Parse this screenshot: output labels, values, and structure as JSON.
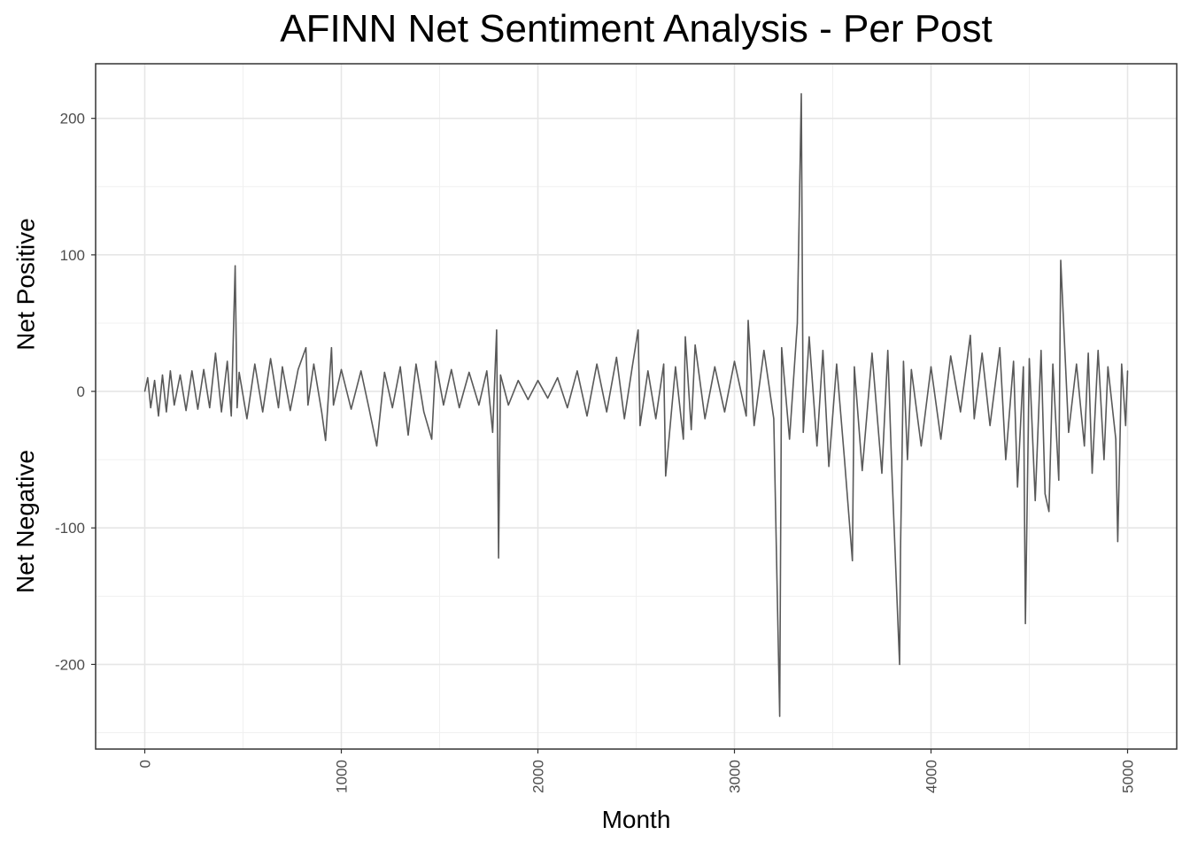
{
  "chart_data": {
    "type": "line",
    "title": "AFINN Net Sentiment Analysis - Per Post",
    "xlabel": "Month",
    "ylabel_top": "Net Positive",
    "ylabel_bottom": "Net Negative",
    "xlim": [
      -250,
      5250
    ],
    "ylim": [
      -262,
      240
    ],
    "x_ticks": [
      0,
      1000,
      2000,
      3000,
      4000,
      5000
    ],
    "x_tick_labels": [
      "0",
      "1000",
      "2000",
      "3000",
      "4000",
      "5000"
    ],
    "y_ticks": [
      -200,
      -100,
      0,
      100,
      200
    ],
    "y_tick_labels": [
      "-200",
      "-100",
      "0",
      "100",
      "200"
    ],
    "grid": true,
    "line_color": "#595959",
    "series": [
      {
        "x": [
          0,
          15,
          30,
          50,
          70,
          90,
          110,
          130,
          150,
          180,
          210,
          240,
          270,
          300,
          330,
          360,
          390,
          420,
          440,
          460,
          470,
          480,
          520,
          560,
          600,
          640,
          680,
          700,
          740,
          780,
          820,
          830,
          860,
          900,
          920,
          950,
          960,
          1000,
          1050,
          1100,
          1140,
          1180,
          1220,
          1260,
          1300,
          1340,
          1380,
          1420,
          1460,
          1480,
          1520,
          1560,
          1600,
          1650,
          1700,
          1740,
          1770,
          1790,
          1800,
          1810,
          1850,
          1900,
          1950,
          2000,
          2050,
          2100,
          2150,
          2200,
          2250,
          2300,
          2350,
          2400,
          2440,
          2480,
          2510,
          2520,
          2560,
          2600,
          2640,
          2650,
          2700,
          2740,
          2750,
          2780,
          2800,
          2850,
          2900,
          2950,
          3000,
          3060,
          3070,
          3100,
          3150,
          3200,
          3230,
          3240,
          3280,
          3320,
          3340,
          3350,
          3380,
          3420,
          3450,
          3480,
          3520,
          3560,
          3600,
          3610,
          3650,
          3700,
          3750,
          3780,
          3800,
          3840,
          3845,
          3850,
          3860,
          3880,
          3900,
          3950,
          4000,
          4050,
          4100,
          4150,
          4200,
          4220,
          4260,
          4300,
          4350,
          4380,
          4420,
          4440,
          4470,
          4480,
          4500,
          4530,
          4560,
          4580,
          4600,
          4620,
          4650,
          4660,
          4700,
          4740,
          4780,
          4800,
          4820,
          4850,
          4880,
          4900,
          4940,
          4950,
          4970,
          4990,
          5000
        ],
        "y": [
          0,
          10,
          -12,
          8,
          -18,
          12,
          -15,
          15,
          -10,
          12,
          -14,
          15,
          -13,
          16,
          -12,
          28,
          -15,
          22,
          -18,
          92,
          -12,
          14,
          -20,
          20,
          -15,
          24,
          -12,
          18,
          -14,
          16,
          32,
          -10,
          20,
          -15,
          -36,
          32,
          -10,
          16,
          -13,
          15,
          -12,
          -40,
          14,
          -12,
          18,
          -32,
          20,
          -15,
          -35,
          22,
          -10,
          16,
          -12,
          14,
          -10,
          15,
          -30,
          45,
          -122,
          12,
          -10,
          8,
          -6,
          8,
          -5,
          10,
          -12,
          15,
          -18,
          20,
          -15,
          25,
          -20,
          18,
          45,
          -25,
          15,
          -20,
          20,
          -62,
          18,
          -35,
          40,
          -28,
          34,
          -20,
          18,
          -15,
          22,
          -18,
          52,
          -25,
          30,
          -20,
          -238,
          32,
          -35,
          50,
          218,
          -30,
          40,
          -40,
          30,
          -55,
          20,
          -50,
          -124,
          18,
          -58,
          28,
          -60,
          30,
          -55,
          -200,
          -114,
          -70,
          22,
          -50,
          16,
          -40,
          18,
          -35,
          26,
          -15,
          41,
          -20,
          28,
          -25,
          32,
          -50,
          22,
          -70,
          18,
          -170,
          24,
          -80,
          30,
          -75,
          -88,
          20,
          -65,
          96,
          -30,
          20,
          -40,
          28,
          -60,
          30,
          -50,
          18,
          -35,
          -110,
          20,
          -25,
          15
        ]
      }
    ]
  }
}
